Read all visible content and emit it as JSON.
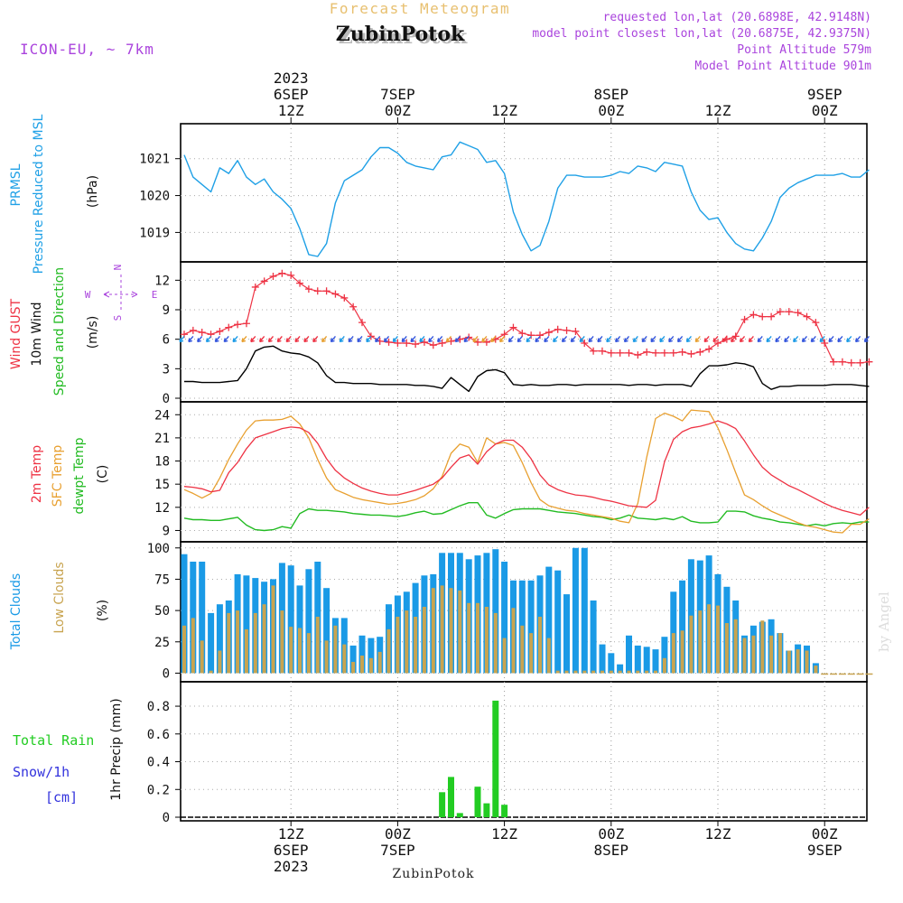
{
  "header": {
    "product": "Forecast Meteogram",
    "station": "ZubinPotok",
    "model": "ICON-EU, ~ 7km",
    "requested": "requested lon,lat (20.6898E, 42.9148N)",
    "closest": "model point closest lon,lat (20.6875E, 42.9375N)",
    "point_alt": "Point Altitude 579m",
    "model_alt": "Model Point Altitude 901m",
    "bottom_station": "ZubinPotok",
    "watermark": "by Angel"
  },
  "time_axis": {
    "top_ticks": [
      {
        "h": 12,
        "lines": [
          "2023",
          "6SEP",
          "12Z"
        ]
      },
      {
        "h": 24,
        "lines": [
          "7SEP",
          "00Z"
        ]
      },
      {
        "h": 36,
        "lines": [
          "12Z"
        ]
      },
      {
        "h": 48,
        "lines": [
          "8SEP",
          "00Z"
        ]
      },
      {
        "h": 60,
        "lines": [
          "12Z"
        ]
      },
      {
        "h": 72,
        "lines": [
          "9SEP",
          "00Z"
        ]
      }
    ],
    "bottom_ticks": [
      {
        "h": 12,
        "lines": [
          "12Z",
          "6SEP",
          "2023"
        ]
      },
      {
        "h": 24,
        "lines": [
          "00Z",
          "7SEP"
        ]
      },
      {
        "h": 36,
        "lines": [
          "12Z"
        ]
      },
      {
        "h": 48,
        "lines": [
          "00Z",
          "8SEP"
        ]
      },
      {
        "h": 60,
        "lines": [
          "12Z"
        ]
      },
      {
        "h": 72,
        "lines": [
          "00Z",
          "9SEP"
        ]
      }
    ]
  },
  "panels": {
    "pressure": {
      "labels": [
        "PRMSL",
        "Pressure Reduced to MSL"
      ],
      "unit": "(hPa)",
      "ticks": [
        "1019",
        "1020",
        "1021"
      ]
    },
    "wind": {
      "labels": [
        "Wind GUST",
        "10m Wind",
        "Speed and Direction"
      ],
      "unit": "(m/s)",
      "ticks": [
        "0",
        "3",
        "6",
        "9",
        "12"
      ],
      "compass": {
        "n": "N",
        "s": "S",
        "e": "E",
        "w": "W"
      }
    },
    "temp": {
      "labels": [
        "2m Temp",
        "SFC Temp",
        "dewpt Temp"
      ],
      "unit": "(C)",
      "ticks": [
        "9",
        "12",
        "15",
        "18",
        "21",
        "24"
      ]
    },
    "clouds": {
      "labels": [
        "Total Clouds",
        "Low Clouds"
      ],
      "unit": "(%)",
      "ticks": [
        "0",
        "25",
        "50",
        "75",
        "100"
      ]
    },
    "precip": {
      "labels": [
        "Total  Rain",
        "Snow/1h",
        "[cm]"
      ],
      "unit": "1hr Precip (mm)",
      "ticks": [
        "0",
        "0.2",
        "0.4",
        "0.6",
        "0.8"
      ]
    }
  },
  "colors": {
    "pressure": "#1fa0e6",
    "gust": "#ee3344",
    "wind": "#000000",
    "temp2m": "#ee3344",
    "sfc": "#e8a030",
    "dewpt": "#22bb22",
    "total_clouds": "#1a9ae6",
    "low_clouds": "#c8a450",
    "rain": "#22cc22",
    "snow": "#3333dd",
    "title": "#e8c070",
    "info": "#aa44dd"
  },
  "chart_data": [
    {
      "type": "line",
      "name": "PRMSL",
      "ylim": [
        1018.3,
        1021.85
      ],
      "x_hours": [
        0,
        1,
        2,
        3,
        4,
        5,
        6,
        7,
        8,
        9,
        10,
        11,
        12,
        13,
        14,
        15,
        16,
        17,
        18,
        19,
        20,
        21,
        22,
        23,
        24,
        25,
        26,
        27,
        28,
        29,
        30,
        31,
        32,
        33,
        34,
        35,
        36,
        37,
        38,
        39,
        40,
        41,
        42,
        43,
        44,
        45,
        46,
        47,
        48,
        49,
        50,
        51,
        52,
        53,
        54,
        55,
        56,
        57,
        58,
        59,
        60,
        61,
        62,
        63,
        64,
        65,
        66,
        67,
        68,
        69,
        70,
        71,
        72,
        73,
        74,
        75,
        76,
        77
      ],
      "values": [
        1021.1,
        1020.5,
        1020.3,
        1020.1,
        1020.75,
        1020.6,
        1020.95,
        1020.5,
        1020.3,
        1020.45,
        1020.1,
        1019.9,
        1019.65,
        1019.1,
        1018.4,
        1018.35,
        1018.7,
        1019.8,
        1020.4,
        1020.55,
        1020.7,
        1021.05,
        1021.3,
        1021.3,
        1021.15,
        1020.9,
        1020.8,
        1020.75,
        1020.7,
        1021.05,
        1021.1,
        1021.45,
        1021.35,
        1021.25,
        1020.9,
        1020.95,
        1020.6,
        1019.55,
        1018.95,
        1018.5,
        1018.65,
        1019.3,
        1020.2,
        1020.55,
        1020.55,
        1020.5,
        1020.5,
        1020.5,
        1020.55,
        1020.65,
        1020.6,
        1020.8,
        1020.75,
        1020.65,
        1020.9,
        1020.85,
        1020.8,
        1020.1,
        1019.6,
        1019.35,
        1019.4,
        1019.0,
        1018.7,
        1018.55,
        1018.5,
        1018.85,
        1019.3,
        1019.95,
        1020.2,
        1020.35,
        1020.45,
        1020.55,
        1020.55,
        1020.55,
        1020.6,
        1020.5,
        1020.5,
        1020.7
      ]
    },
    {
      "type": "line",
      "name": "Wind GUST",
      "ylim": [
        0,
        13.5
      ],
      "x_hours": [
        0,
        1,
        2,
        3,
        4,
        5,
        6,
        7,
        8,
        9,
        10,
        11,
        12,
        13,
        14,
        15,
        16,
        17,
        18,
        19,
        20,
        21,
        22,
        23,
        24,
        25,
        26,
        27,
        28,
        29,
        30,
        31,
        32,
        33,
        34,
        35,
        36,
        37,
        38,
        39,
        40,
        41,
        42,
        43,
        44,
        45,
        46,
        47,
        48,
        49,
        50,
        51,
        52,
        53,
        54,
        55,
        56,
        57,
        58,
        59,
        60,
        61,
        62,
        63,
        64,
        65,
        66,
        67,
        68,
        69,
        70,
        71,
        72,
        73,
        74,
        75,
        76,
        77
      ],
      "gust": [
        6.5,
        6.9,
        6.7,
        6.5,
        6.8,
        7.2,
        7.5,
        7.6,
        11.3,
        11.9,
        12.4,
        12.7,
        12.5,
        11.7,
        11.1,
        10.9,
        10.9,
        10.6,
        10.2,
        9.3,
        7.7,
        6.3,
        5.8,
        5.7,
        5.6,
        5.6,
        5.5,
        5.7,
        5.4,
        5.6,
        5.8,
        6.0,
        6.2,
        5.7,
        5.7,
        6.0,
        6.5,
        7.2,
        6.6,
        6.4,
        6.4,
        6.7,
        7.0,
        6.9,
        6.8,
        5.6,
        4.8,
        4.8,
        4.6,
        4.6,
        4.6,
        4.4,
        4.7,
        4.6,
        4.6,
        4.6,
        4.7,
        4.5,
        4.7,
        5.0,
        5.6,
        6.0,
        6.3,
        8.0,
        8.5,
        8.3,
        8.3,
        8.8,
        8.8,
        8.7,
        8.3,
        7.7,
        5.6,
        3.7,
        3.7,
        3.6,
        3.6,
        3.7
      ],
      "wind": [
        1.7,
        1.7,
        1.6,
        1.6,
        1.6,
        1.7,
        1.8,
        3.0,
        4.8,
        5.2,
        5.3,
        4.8,
        4.6,
        4.5,
        4.2,
        3.6,
        2.3,
        1.6,
        1.6,
        1.5,
        1.5,
        1.5,
        1.4,
        1.4,
        1.4,
        1.4,
        1.3,
        1.3,
        1.2,
        1.0,
        2.1,
        1.4,
        0.7,
        2.2,
        2.8,
        2.9,
        2.6,
        1.4,
        1.3,
        1.4,
        1.3,
        1.3,
        1.4,
        1.4,
        1.3,
        1.4,
        1.4,
        1.4,
        1.4,
        1.4,
        1.3,
        1.4,
        1.4,
        1.3,
        1.4,
        1.4,
        1.4,
        1.2,
        2.5,
        3.3,
        3.3,
        3.4,
        3.6,
        3.5,
        3.2,
        1.5,
        0.9,
        1.2,
        1.2,
        1.3,
        1.3,
        1.3,
        1.3,
        1.4,
        1.4,
        1.4,
        1.3,
        1.2
      ]
    },
    {
      "type": "line",
      "name": "Temperature",
      "ylim": [
        8.0,
        25.2
      ],
      "x_hours": [
        0,
        1,
        2,
        3,
        4,
        5,
        6,
        7,
        8,
        9,
        10,
        11,
        12,
        13,
        14,
        15,
        16,
        17,
        18,
        19,
        20,
        21,
        22,
        23,
        24,
        25,
        26,
        27,
        28,
        29,
        30,
        31,
        32,
        33,
        34,
        35,
        36,
        37,
        38,
        39,
        40,
        41,
        42,
        43,
        44,
        45,
        46,
        47,
        48,
        49,
        50,
        51,
        52,
        53,
        54,
        55,
        56,
        57,
        58,
        59,
        60,
        61,
        62,
        63,
        64,
        65,
        66,
        67,
        68,
        69,
        70,
        71,
        72,
        73,
        74,
        75,
        76,
        77
      ],
      "temp2m": [
        14.7,
        14.6,
        14.4,
        14.0,
        14.2,
        16.5,
        17.8,
        19.6,
        21.0,
        21.4,
        21.8,
        22.2,
        22.4,
        22.3,
        21.7,
        20.3,
        18.3,
        16.8,
        15.8,
        15.1,
        14.5,
        14.1,
        13.8,
        13.6,
        13.6,
        13.9,
        14.2,
        14.6,
        15.0,
        15.8,
        17.2,
        18.4,
        18.8,
        17.6,
        19.2,
        20.2,
        20.7,
        20.7,
        19.8,
        18.3,
        16.2,
        14.9,
        14.3,
        13.9,
        13.6,
        13.5,
        13.3,
        13.0,
        12.8,
        12.5,
        12.2,
        12.1,
        12.0,
        12.9,
        17.9,
        20.8,
        21.8,
        22.3,
        22.5,
        22.8,
        23.2,
        22.8,
        22.2,
        20.6,
        18.8,
        17.2,
        16.2,
        15.5,
        14.8,
        14.3,
        13.7,
        13.1,
        12.5,
        12.0,
        11.6,
        11.3,
        11.0,
        12.0
      ],
      "sfc": [
        14.3,
        13.8,
        13.2,
        13.8,
        15.8,
        18.2,
        20.2,
        22.0,
        23.2,
        23.3,
        23.3,
        23.4,
        23.8,
        22.8,
        21.0,
        18.2,
        15.8,
        14.3,
        13.8,
        13.3,
        13.0,
        12.8,
        12.6,
        12.4,
        12.5,
        12.7,
        13.0,
        13.5,
        14.4,
        16.0,
        19.0,
        20.2,
        19.8,
        17.8,
        21.0,
        20.2,
        20.4,
        20.0,
        17.8,
        15.2,
        13.0,
        12.2,
        11.9,
        11.6,
        11.5,
        11.2,
        11.0,
        10.8,
        10.6,
        10.2,
        10.0,
        12.5,
        18.5,
        23.5,
        24.2,
        23.8,
        23.2,
        24.6,
        24.5,
        24.4,
        22.3,
        19.5,
        16.5,
        13.6,
        13.0,
        12.2,
        11.5,
        11.0,
        10.5,
        10.0,
        9.6,
        9.4,
        9.1,
        8.8,
        8.7,
        9.8,
        9.8,
        10.5
      ],
      "dewpt": [
        10.6,
        10.4,
        10.4,
        10.3,
        10.3,
        10.5,
        10.7,
        9.7,
        9.1,
        9.0,
        9.1,
        9.5,
        9.3,
        11.2,
        11.8,
        11.6,
        11.6,
        11.5,
        11.4,
        11.2,
        11.1,
        11.0,
        11.0,
        10.9,
        10.8,
        11.0,
        11.3,
        11.5,
        11.1,
        11.2,
        11.7,
        12.2,
        12.6,
        12.6,
        11.0,
        10.6,
        11.2,
        11.7,
        11.8,
        11.8,
        11.8,
        11.6,
        11.4,
        11.3,
        11.2,
        11.0,
        10.8,
        10.7,
        10.4,
        10.6,
        11.0,
        10.6,
        10.5,
        10.4,
        10.6,
        10.4,
        10.8,
        10.2,
        10.0,
        10.0,
        10.1,
        11.5,
        11.5,
        11.4,
        10.9,
        10.6,
        10.4,
        10.1,
        10.0,
        9.8,
        9.6,
        9.8,
        9.6,
        9.9,
        10.0,
        9.9,
        10.1,
        10.1
      ]
    },
    {
      "type": "bar",
      "name": "Clouds",
      "ylim": [
        -4,
        102
      ],
      "x_hours": [
        0,
        1,
        2,
        3,
        4,
        5,
        6,
        7,
        8,
        9,
        10,
        11,
        12,
        13,
        14,
        15,
        16,
        17,
        18,
        19,
        20,
        21,
        22,
        23,
        24,
        25,
        26,
        27,
        28,
        29,
        30,
        31,
        32,
        33,
        34,
        35,
        36,
        37,
        38,
        39,
        40,
        41,
        42,
        43,
        44,
        45,
        46,
        47,
        48,
        49,
        50,
        51,
        52,
        53,
        54,
        55,
        56,
        57,
        58,
        59,
        60,
        61,
        62,
        63,
        64,
        65,
        66,
        67,
        68,
        69,
        70,
        71,
        72,
        73,
        74,
        75,
        76,
        77
      ],
      "total": [
        95,
        89,
        89,
        48,
        55,
        58,
        79,
        78,
        76,
        73,
        75,
        88,
        86,
        70,
        83,
        89,
        68,
        44,
        44,
        22,
        30,
        28,
        29,
        55,
        62,
        65,
        72,
        78,
        79,
        96,
        96,
        96,
        91,
        94,
        96,
        99,
        89,
        74,
        74,
        74,
        78,
        85,
        82,
        63,
        100,
        100,
        58,
        23,
        16,
        7,
        30,
        22,
        21,
        19,
        29,
        65,
        74,
        91,
        90,
        94,
        79,
        69,
        58,
        30,
        38,
        41,
        43,
        32,
        18,
        23,
        22,
        8,
        1,
        1,
        1,
        1,
        1,
        1
      ],
      "low": [
        38,
        44,
        26,
        2,
        18,
        48,
        50,
        35,
        48,
        55,
        70,
        50,
        37,
        36,
        32,
        45,
        26,
        38,
        23,
        9,
        14,
        12,
        17,
        35,
        45,
        50,
        45,
        53,
        68,
        70,
        68,
        66,
        56,
        56,
        53,
        48,
        28,
        52,
        38,
        32,
        45,
        28,
        2,
        2,
        2,
        2,
        2,
        2,
        2,
        2,
        2,
        2,
        2,
        2,
        12,
        32,
        34,
        46,
        50,
        55,
        54,
        40,
        43,
        28,
        30,
        42,
        30,
        32,
        18,
        19,
        18,
        6,
        0,
        0,
        0,
        0,
        0,
        0
      ]
    },
    {
      "type": "bar",
      "name": "1hr Precip",
      "ylim": [
        0,
        0.95
      ],
      "x_hours": [
        0,
        1,
        2,
        3,
        4,
        5,
        6,
        7,
        8,
        9,
        10,
        11,
        12,
        13,
        14,
        15,
        16,
        17,
        18,
        19,
        20,
        21,
        22,
        23,
        24,
        25,
        26,
        27,
        28,
        29,
        30,
        31,
        32,
        33,
        34,
        35,
        36,
        37,
        38,
        39,
        40,
        41,
        42,
        43,
        44,
        45,
        46,
        47,
        48,
        49,
        50,
        51,
        52,
        53,
        54,
        55,
        56,
        57,
        58,
        59,
        60,
        61,
        62,
        63,
        64,
        65,
        66,
        67,
        68,
        69,
        70,
        71,
        72,
        73,
        74,
        75,
        76,
        77
      ],
      "rain": [
        0,
        0,
        0,
        0,
        0,
        0,
        0,
        0,
        0,
        0,
        0,
        0,
        0,
        0,
        0,
        0,
        0,
        0,
        0,
        0,
        0,
        0,
        0,
        0,
        0,
        0,
        0,
        0,
        0,
        0.18,
        0.29,
        0.03,
        0,
        0.22,
        0.1,
        0.84,
        0.09,
        0,
        0,
        0,
        0,
        0,
        0,
        0,
        0,
        0,
        0,
        0,
        0,
        0,
        0,
        0,
        0,
        0,
        0,
        0,
        0,
        0,
        0,
        0,
        0,
        0,
        0,
        0,
        0,
        0,
        0,
        0,
        0,
        0,
        0,
        0,
        0,
        0,
        0,
        0,
        0,
        0
      ],
      "snow": [
        0,
        0,
        0,
        0,
        0,
        0,
        0,
        0,
        0,
        0,
        0,
        0,
        0,
        0,
        0,
        0,
        0,
        0,
        0,
        0,
        0,
        0,
        0,
        0,
        0,
        0,
        0,
        0,
        0,
        0,
        0,
        0,
        0,
        0,
        0,
        0,
        0,
        0,
        0,
        0,
        0,
        0,
        0,
        0,
        0,
        0,
        0,
        0,
        0,
        0,
        0,
        0,
        0,
        0,
        0,
        0,
        0,
        0,
        0,
        0,
        0,
        0,
        0,
        0,
        0,
        0,
        0,
        0,
        0,
        0,
        0,
        0,
        0,
        0,
        0,
        0,
        0,
        0
      ]
    }
  ]
}
